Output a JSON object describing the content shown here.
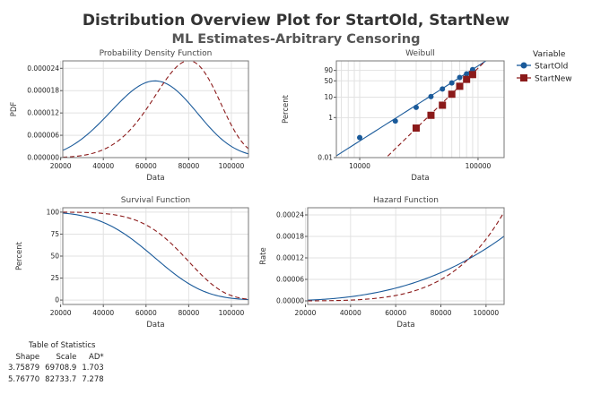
{
  "title": "Distribution Overview Plot for StartOld, StartNew",
  "subtitle": "ML Estimates-Arbitrary Censoring",
  "legend": {
    "title": "Variable",
    "entries": [
      "StartOld",
      "StartNew"
    ]
  },
  "colors": {
    "StartOld": "#1a5a9a",
    "StartNew": "#8b1a1a"
  },
  "stats": {
    "title": "Table of Statistics",
    "headers": [
      "Shape",
      "Scale",
      "AD*"
    ],
    "rows": [
      [
        "3.75879",
        "69708.9",
        "1.703"
      ],
      [
        "5.76770",
        "82733.7",
        "7.278"
      ]
    ]
  },
  "chart_data": [
    {
      "type": "line",
      "title": "Probability Density Function",
      "xlabel": "Data",
      "ylabel": "PDF",
      "xlim": [
        21000,
        108000
      ],
      "ylim": [
        0,
        2.6e-05
      ],
      "xticks": [
        "20000",
        "40000",
        "60000",
        "80000",
        "100000"
      ],
      "yticks": [
        "0.000000",
        "0.000006",
        "0.000012",
        "0.000018",
        "0.000024"
      ],
      "series": [
        {
          "name": "StartOld",
          "shape": 3.75879,
          "scale": 69708.9
        },
        {
          "name": "StartNew",
          "shape": 5.7677,
          "scale": 82733.7
        }
      ]
    },
    {
      "type": "scatter",
      "title": "Weibull",
      "xlabel": "Data",
      "ylabel": "Percent",
      "xscale": "log",
      "yscale": "weibull",
      "xlim": [
        6350,
        166000
      ],
      "ylim": [
        0.01,
        99.9
      ],
      "xticks": [
        "10000",
        "100000"
      ],
      "yticks": [
        "0.01",
        "1",
        "10",
        "50",
        "90"
      ],
      "series": [
        {
          "name": "StartOld",
          "x": [
            10000,
            20000,
            30000,
            40000,
            50000,
            60000,
            70000,
            80000,
            90000
          ],
          "y": [
            0.1,
            0.68,
            3.2,
            10.7,
            23.7,
            42,
            64,
            78.6,
            92
          ]
        },
        {
          "name": "StartNew",
          "x": [
            30000,
            40000,
            50000,
            60000,
            70000,
            80000,
            90000
          ],
          "y": [
            0.3,
            1.3,
            4.1,
            13.8,
            31,
            56,
            76
          ]
        }
      ]
    },
    {
      "type": "line",
      "title": "Survival Function",
      "xlabel": "Data",
      "ylabel": "Percent",
      "xlim": [
        21000,
        108000
      ],
      "ylim": [
        -5,
        105
      ],
      "xticks": [
        "20000",
        "40000",
        "60000",
        "80000",
        "100000"
      ],
      "yticks": [
        "0",
        "25",
        "50",
        "75",
        "100"
      ]
    },
    {
      "type": "line",
      "title": "Hazard Function",
      "xlabel": "Data",
      "ylabel": "Rate",
      "xlim": [
        21000,
        108000
      ],
      "ylim": [
        -1e-05,
        0.00026
      ],
      "xticks": [
        "20000",
        "40000",
        "60000",
        "80000",
        "100000"
      ],
      "yticks": [
        "0.00000",
        "0.00006",
        "0.00012",
        "0.00018",
        "0.00024"
      ]
    }
  ]
}
